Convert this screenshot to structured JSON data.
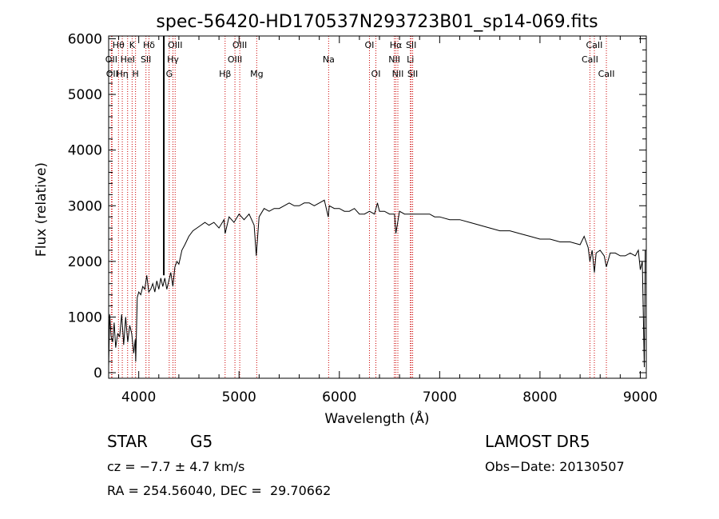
{
  "chart_data": {
    "type": "line",
    "title": "spec-56420-HD170537N293723B01_sp14-069.fits",
    "xlabel": "Wavelength (Å)",
    "ylabel": "Flux (relative)",
    "xlim": [
      3700,
      9060
    ],
    "ylim": [
      -100,
      6050
    ],
    "xticks": [
      4000,
      5000,
      6000,
      7000,
      8000,
      9000
    ],
    "yticks": [
      0,
      1000,
      2000,
      3000,
      4000,
      5000,
      6000
    ],
    "grid": false,
    "line_color": "#000000",
    "marker_color": "#cc0000",
    "series": [
      {
        "x": [
          3700,
          3710,
          3725,
          3740,
          3755,
          3770,
          3790,
          3810,
          3830,
          3850,
          3870,
          3890,
          3910,
          3930,
          3950,
          3965,
          3970,
          3985,
          4000,
          4020,
          4040,
          4060,
          4080,
          4100,
          4120,
          4140,
          4160,
          4180,
          4200,
          4220,
          4240,
          4260,
          4280,
          4300,
          4320,
          4340,
          4360,
          4380,
          4400,
          4430,
          4460,
          4500,
          4540,
          4580,
          4620,
          4660,
          4700,
          4750,
          4800,
          4850,
          4861,
          4900,
          4950,
          5000,
          5050,
          5100,
          5150,
          5172,
          5200,
          5250,
          5300,
          5350,
          5400,
          5450,
          5500,
          5550,
          5600,
          5650,
          5700,
          5750,
          5800,
          5850,
          5889,
          5900,
          5950,
          6000,
          6050,
          6100,
          6150,
          6200,
          6250,
          6300,
          6350,
          6380,
          6400,
          6450,
          6500,
          6550,
          6563,
          6600,
          6650,
          6700,
          6750,
          6800,
          6850,
          6900,
          6950,
          7000,
          7100,
          7200,
          7300,
          7400,
          7500,
          7600,
          7700,
          7800,
          7900,
          8000,
          8100,
          8200,
          8300,
          8400,
          8440,
          8480,
          8498,
          8520,
          8542,
          8560,
          8600,
          8640,
          8662,
          8700,
          8750,
          8800,
          8850,
          8900,
          8950,
          8980,
          9000,
          9020,
          9040,
          9050
        ],
        "y": [
          100,
          1050,
          650,
          550,
          900,
          450,
          700,
          650,
          1050,
          500,
          1000,
          550,
          850,
          700,
          350,
          600,
          200,
          1350,
          1450,
          1400,
          1550,
          1500,
          1750,
          1450,
          1500,
          1600,
          1450,
          1650,
          1500,
          1700,
          1550,
          1700,
          1500,
          1650,
          1800,
          1550,
          1900,
          2000,
          1950,
          2200,
          2300,
          2450,
          2550,
          2600,
          2650,
          2700,
          2650,
          2700,
          2600,
          2750,
          2500,
          2800,
          2700,
          2850,
          2750,
          2850,
          2650,
          2100,
          2800,
          2950,
          2900,
          2950,
          2950,
          3000,
          3050,
          3000,
          3000,
          3050,
          3050,
          3000,
          3050,
          3100,
          2800,
          3000,
          2950,
          2950,
          2900,
          2900,
          2950,
          2850,
          2850,
          2900,
          2850,
          3050,
          2900,
          2900,
          2850,
          2850,
          2500,
          2900,
          2850,
          2850,
          2850,
          2850,
          2850,
          2850,
          2800,
          2800,
          2750,
          2750,
          2700,
          2650,
          2600,
          2550,
          2550,
          2500,
          2450,
          2400,
          2400,
          2350,
          2350,
          2300,
          2450,
          2250,
          2000,
          2200,
          1800,
          2150,
          2200,
          2100,
          1900,
          2150,
          2150,
          2100,
          2100,
          2150,
          2100,
          2200,
          1850,
          2000,
          100,
          2200
        ]
      }
    ],
    "lines": [
      {
        "x": 3727,
        "label": "OII",
        "row": 1
      },
      {
        "x": 3734,
        "label": "OII",
        "row": 2
      },
      {
        "x": 3798,
        "label": "Hθ",
        "row": 0
      },
      {
        "x": 3836,
        "label": "Hη",
        "row": 2
      },
      {
        "x": 3889,
        "label": "HeI",
        "row": 1
      },
      {
        "x": 3934,
        "label": "K",
        "row": 0
      },
      {
        "x": 3968,
        "label": "H",
        "row": 2
      },
      {
        "x": 4072,
        "label": "SII",
        "row": 1
      },
      {
        "x": 4102,
        "label": "Hδ",
        "row": 0
      },
      {
        "x": 4304,
        "label": "G",
        "row": 2
      },
      {
        "x": 4341,
        "label": "Hγ",
        "row": 1
      },
      {
        "x": 4363,
        "label": "OIII",
        "row": 0
      },
      {
        "x": 4861,
        "label": "Hβ",
        "row": 2
      },
      {
        "x": 4959,
        "label": "OIII",
        "row": 1
      },
      {
        "x": 5007,
        "label": "OIII",
        "row": 0
      },
      {
        "x": 5176,
        "label": "Mg",
        "row": 2
      },
      {
        "x": 5893,
        "label": "Na",
        "row": 1
      },
      {
        "x": 6300,
        "label": "OI",
        "row": 0
      },
      {
        "x": 6364,
        "label": "OI",
        "row": 2
      },
      {
        "x": 6548,
        "label": "NII",
        "row": 1
      },
      {
        "x": 6563,
        "label": "Hα",
        "row": 0
      },
      {
        "x": 6583,
        "label": "NII",
        "row": 2
      },
      {
        "x": 6708,
        "label": "Li",
        "row": 1
      },
      {
        "x": 6716,
        "label": "SII",
        "row": 0
      },
      {
        "x": 6731,
        "label": "SII",
        "row": 2
      },
      {
        "x": 8498,
        "label": "CaII",
        "row": 1
      },
      {
        "x": 8542,
        "label": "CaII",
        "row": 0
      },
      {
        "x": 8662,
        "label": "CaII",
        "row": 2
      }
    ],
    "marker": {
      "x": 4250
    }
  },
  "info": {
    "class_label": "STAR",
    "subclass": "G5",
    "survey": "LAMOST DR5",
    "redshift_text": "cz = −7.7 ± 4.7 km/s",
    "obs_date": "Obs−Date: 20130507",
    "coords": "RA = 254.56040, DEC =  29.70662"
  }
}
